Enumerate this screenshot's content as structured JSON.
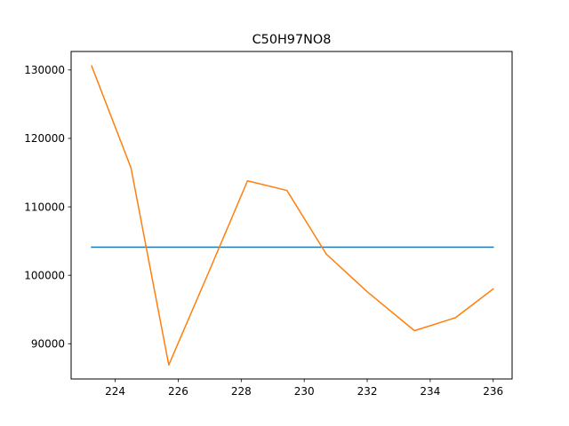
{
  "chart_data": {
    "type": "line",
    "title": "C50H97NO8",
    "xlabel": "",
    "ylabel": "",
    "xlim": [
      222.6,
      236.6
    ],
    "ylim": [
      84850,
      132700
    ],
    "grid": false,
    "legend": "none",
    "x_ticks": [
      224,
      226,
      228,
      230,
      232,
      234,
      236
    ],
    "y_ticks": [
      90000,
      100000,
      110000,
      120000,
      130000
    ],
    "series": [
      {
        "color": "#1f77b4",
        "x": [
          223.25,
          236.0
        ],
        "y": [
          104100,
          104100
        ]
      },
      {
        "color": "#ff7f0e",
        "x": [
          223.25,
          224.5,
          225.7,
          227.0,
          228.2,
          229.45,
          230.7,
          232.0,
          233.5,
          234.8,
          236.0
        ],
        "y": [
          130600,
          115700,
          86900,
          100800,
          113800,
          112400,
          103100,
          97600,
          91900,
          93800,
          98000
        ]
      }
    ]
  }
}
